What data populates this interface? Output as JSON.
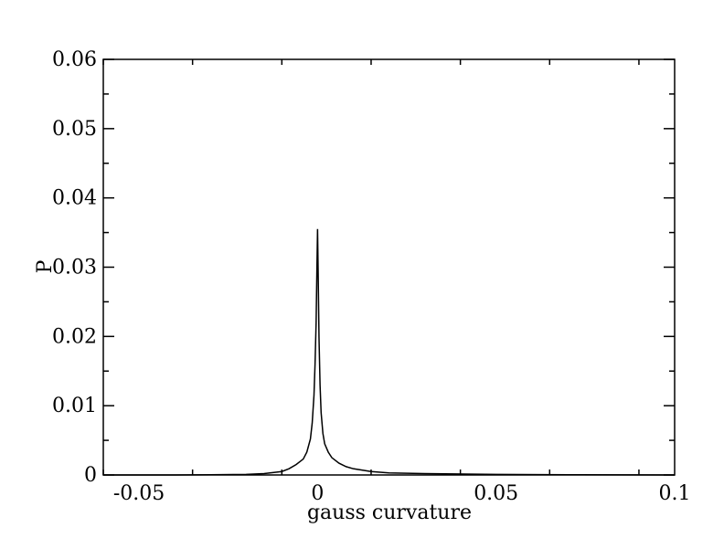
{
  "chart_data": {
    "type": "line",
    "title": "",
    "xlabel": "gauss curvature",
    "ylabel": "P",
    "xlim": [
      -0.06,
      0.1
    ],
    "ylim": [
      0,
      0.06
    ],
    "x_ticks": [
      -0.05,
      0,
      0.05,
      0.1
    ],
    "x_tick_labels": [
      "-0.05",
      "0",
      "0.05",
      "0.1"
    ],
    "y_ticks": [
      0,
      0.01,
      0.02,
      0.03,
      0.04,
      0.05,
      0.06
    ],
    "y_tick_labels": [
      "0",
      "0.01",
      "0.02",
      "0.03",
      "0.04",
      "0.05",
      "0.06"
    ],
    "grid": false,
    "legend": "none",
    "series": [
      {
        "color": "#000000",
        "x": [
          -0.06,
          -0.04,
          -0.03,
          -0.02,
          -0.015,
          -0.01,
          -0.008,
          -0.006,
          -0.004,
          -0.003,
          -0.002,
          -0.0015,
          -0.001,
          -0.0007,
          -0.0004,
          -0.0002,
          0,
          0.0002,
          0.0004,
          0.0007,
          0.001,
          0.0015,
          0.002,
          0.003,
          0.004,
          0.006,
          0.008,
          0.01,
          0.015,
          0.02,
          0.03,
          0.05,
          0.07,
          0.1
        ],
        "y": [
          0,
          0,
          3e-05,
          8e-05,
          0.0002,
          0.0005,
          0.0009,
          0.0015,
          0.0023,
          0.0033,
          0.0052,
          0.0075,
          0.0115,
          0.016,
          0.022,
          0.029,
          0.0355,
          0.028,
          0.02,
          0.013,
          0.009,
          0.006,
          0.0045,
          0.0033,
          0.0025,
          0.0017,
          0.0012,
          0.0009,
          0.0005,
          0.0003,
          0.0002,
          8e-05,
          3e-05,
          0
        ]
      }
    ]
  }
}
